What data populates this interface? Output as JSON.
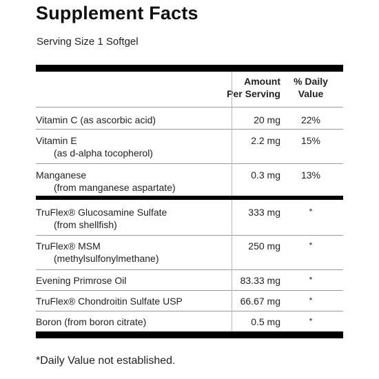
{
  "panel": {
    "title": "Supplement Facts",
    "serving_size": "Serving Size 1 Softgel",
    "header": {
      "amount_line1": "Amount",
      "amount_line2": "Per Serving",
      "dv_line1": "% Daily",
      "dv_line2": "Value"
    },
    "rows": [
      {
        "name": "Vitamin C (as ascorbic acid)",
        "sub": "",
        "amount": "20 mg",
        "dv": "22%"
      },
      {
        "name": "Vitamin E",
        "sub": "(as d-alpha tocopherol)",
        "amount": "2.2 mg",
        "dv": "15%"
      },
      {
        "name": "Manganese",
        "sub": "(from manganese aspartate)",
        "amount": "0.3 mg",
        "dv": "13%"
      },
      {
        "name": "TruFlex® Glucosamine Sulfate",
        "sub": "(from shellfish)",
        "amount": "333 mg",
        "dv": "*"
      },
      {
        "name": "TruFlex® MSM",
        "sub": "(methylsulfonylmethane)",
        "amount": "250 mg",
        "dv": "*"
      },
      {
        "name": "Evening Primrose Oil",
        "sub": "",
        "amount": "83.33 mg",
        "dv": "*"
      },
      {
        "name": "TruFlex® Chondroitin Sulfate USP",
        "sub": "",
        "amount": "66.67 mg",
        "dv": "*"
      },
      {
        "name": "Boron (from boron citrate)",
        "sub": "",
        "amount": "0.5 mg",
        "dv": "*"
      }
    ],
    "footnote": "*Daily Value not established."
  }
}
